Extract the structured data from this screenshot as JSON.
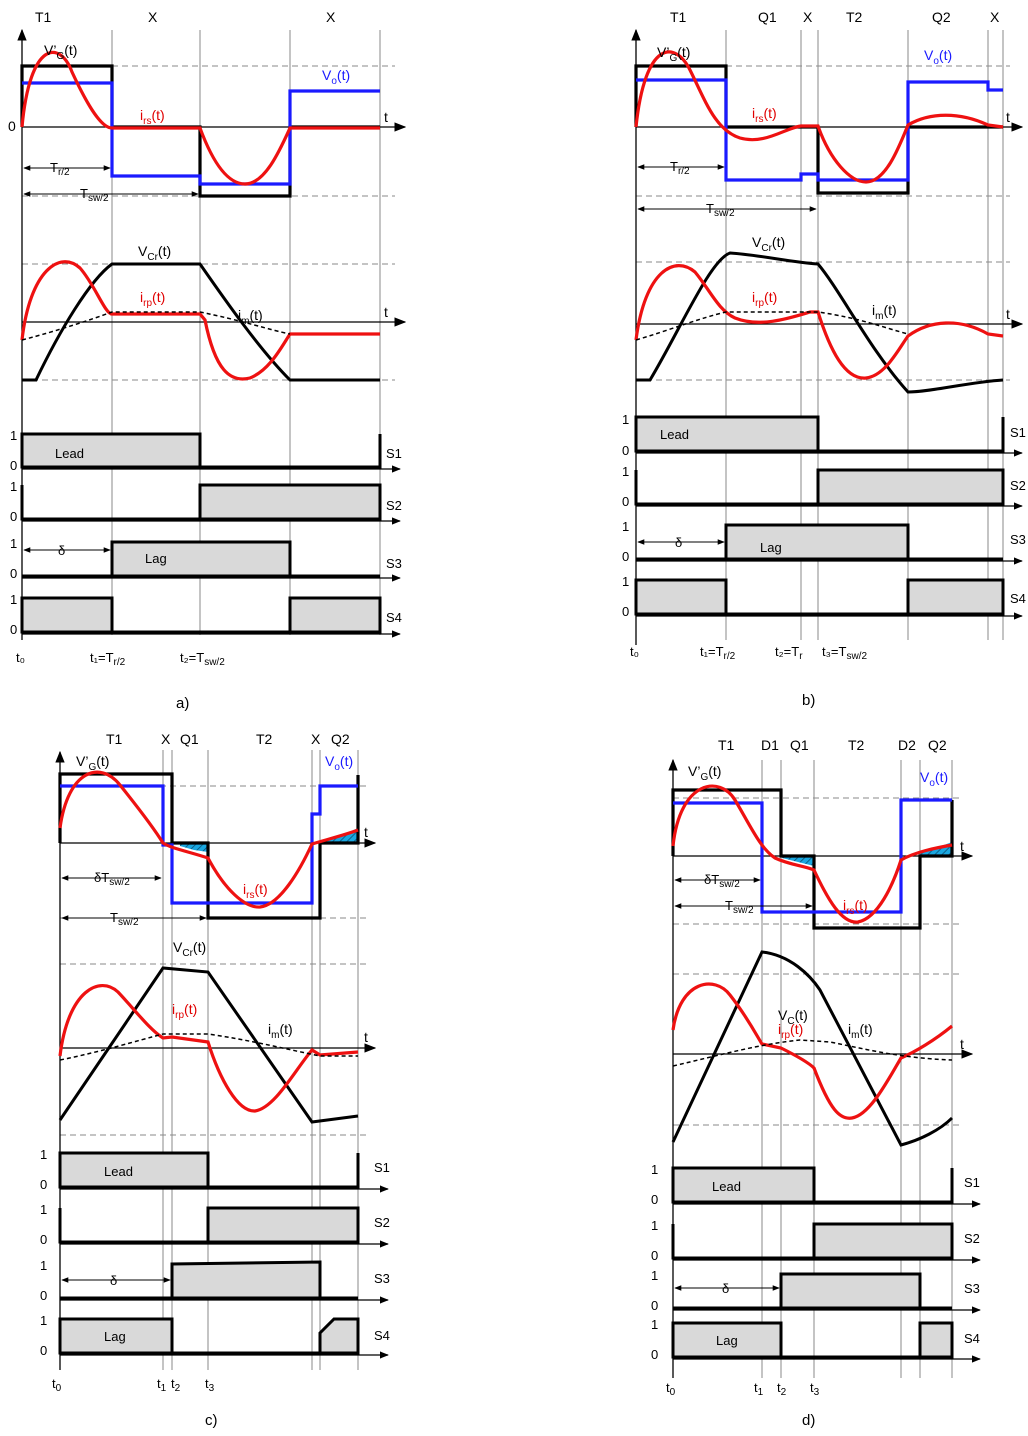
{
  "panels": {
    "a": {
      "caption": "a)",
      "intervals": [
        "T1",
        "X",
        "X"
      ],
      "origin": "0",
      "vg_label_main": "V’",
      "vg_label_sub": "G",
      "vg_label_tail": "(t)",
      "vo_label_main": "V",
      "vo_label_sub": "o",
      "vo_label_tail": "(t)",
      "irs_label_main": "i",
      "irs_label_sub": "rs",
      "irs_label_tail": "(t)",
      "vcr_label_main": "V",
      "vcr_label_sub": "Cr",
      "vcr_label_tail": "(t)",
      "irp_label_main": "i",
      "irp_label_sub": "rp",
      "irp_label_tail": "(t)",
      "im_label_main": "i",
      "im_label_sub": "m",
      "im_label_tail": "(t)",
      "t_axis": "t",
      "tr_dim": "T",
      "tr_dim_sub": "r/2",
      "tsw_dim": "T",
      "tsw_dim_sub": "sw/2",
      "delta": "δ",
      "lead": "Lead",
      "lag": "Lag",
      "switches": [
        "S1",
        "S2",
        "S3",
        "S4"
      ],
      "one": "1",
      "zero": "0",
      "times": [
        "t₀",
        "t₁=T",
        "r/2",
        "t₂=T",
        "sw/2"
      ]
    },
    "b": {
      "caption": "b)",
      "intervals": [
        "T1",
        "Q1",
        "X",
        "T2",
        "Q2",
        "X"
      ],
      "times": [
        "t₀",
        "t₁=T",
        "r/2",
        "t₂=T",
        "r",
        "t₃=T",
        "sw/2"
      ]
    },
    "c": {
      "caption": "c)",
      "intervals": [
        "T1",
        "X",
        "Q1",
        "T2",
        "X",
        "Q2"
      ],
      "delta_tsw": "δT",
      "delta_tsw_sub": "sw/2",
      "times": [
        "t",
        "0",
        "t",
        "1",
        "t",
        "2",
        "t",
        "3"
      ]
    },
    "d": {
      "caption": "d)",
      "intervals": [
        "T1",
        "D1",
        "Q1",
        "T2",
        "D2",
        "Q2"
      ],
      "vc_label_main": "V",
      "vc_label_sub": "C",
      "vc_label_tail": "(t)",
      "times": [
        "t",
        "0",
        "t",
        "1",
        "t",
        "2",
        "t",
        "3"
      ]
    }
  },
  "colors": {
    "vg": "#000000",
    "vo": "#1a1aff",
    "current": "#ee1111",
    "switch_fill": "#d9d9d9",
    "highlight": "#1aa7e0"
  }
}
